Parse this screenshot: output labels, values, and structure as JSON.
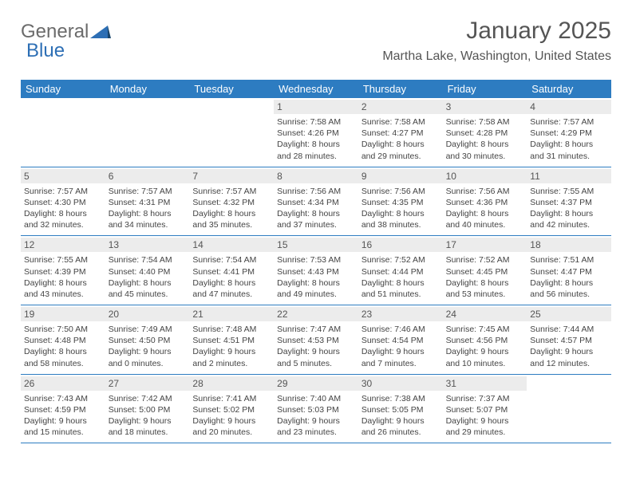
{
  "brand": {
    "part1": "General",
    "part2": "Blue"
  },
  "title": {
    "month": "January 2025",
    "location": "Martha Lake, Washington, United States"
  },
  "colors": {
    "header_bg": "#2d7cc1",
    "header_text": "#ffffff",
    "daybar_bg": "#ececec",
    "text_primary": "#555555",
    "text_body": "#444444",
    "rule": "#2d7cc1",
    "page_bg": "#ffffff",
    "brand_gray": "#6b6b6b",
    "brand_blue": "#2d6fb5"
  },
  "layout": {
    "columns": 7,
    "header_fontsize": 13,
    "daynum_fontsize": 12,
    "info_fontsize": 10.5,
    "title_fontsize": 30,
    "subtitle_fontsize": 16
  },
  "dayHeaders": [
    "Sunday",
    "Monday",
    "Tuesday",
    "Wednesday",
    "Thursday",
    "Friday",
    "Saturday"
  ],
  "weeks": [
    [
      {
        "blank": true
      },
      {
        "blank": true
      },
      {
        "blank": true
      },
      {
        "n": "1",
        "sr": "7:58 AM",
        "ss": "4:26 PM",
        "dh": 8,
        "dm": 28
      },
      {
        "n": "2",
        "sr": "7:58 AM",
        "ss": "4:27 PM",
        "dh": 8,
        "dm": 29
      },
      {
        "n": "3",
        "sr": "7:58 AM",
        "ss": "4:28 PM",
        "dh": 8,
        "dm": 30
      },
      {
        "n": "4",
        "sr": "7:57 AM",
        "ss": "4:29 PM",
        "dh": 8,
        "dm": 31
      }
    ],
    [
      {
        "n": "5",
        "sr": "7:57 AM",
        "ss": "4:30 PM",
        "dh": 8,
        "dm": 32
      },
      {
        "n": "6",
        "sr": "7:57 AM",
        "ss": "4:31 PM",
        "dh": 8,
        "dm": 34
      },
      {
        "n": "7",
        "sr": "7:57 AM",
        "ss": "4:32 PM",
        "dh": 8,
        "dm": 35
      },
      {
        "n": "8",
        "sr": "7:56 AM",
        "ss": "4:34 PM",
        "dh": 8,
        "dm": 37
      },
      {
        "n": "9",
        "sr": "7:56 AM",
        "ss": "4:35 PM",
        "dh": 8,
        "dm": 38
      },
      {
        "n": "10",
        "sr": "7:56 AM",
        "ss": "4:36 PM",
        "dh": 8,
        "dm": 40
      },
      {
        "n": "11",
        "sr": "7:55 AM",
        "ss": "4:37 PM",
        "dh": 8,
        "dm": 42
      }
    ],
    [
      {
        "n": "12",
        "sr": "7:55 AM",
        "ss": "4:39 PM",
        "dh": 8,
        "dm": 43
      },
      {
        "n": "13",
        "sr": "7:54 AM",
        "ss": "4:40 PM",
        "dh": 8,
        "dm": 45
      },
      {
        "n": "14",
        "sr": "7:54 AM",
        "ss": "4:41 PM",
        "dh": 8,
        "dm": 47
      },
      {
        "n": "15",
        "sr": "7:53 AM",
        "ss": "4:43 PM",
        "dh": 8,
        "dm": 49
      },
      {
        "n": "16",
        "sr": "7:52 AM",
        "ss": "4:44 PM",
        "dh": 8,
        "dm": 51
      },
      {
        "n": "17",
        "sr": "7:52 AM",
        "ss": "4:45 PM",
        "dh": 8,
        "dm": 53
      },
      {
        "n": "18",
        "sr": "7:51 AM",
        "ss": "4:47 PM",
        "dh": 8,
        "dm": 56
      }
    ],
    [
      {
        "n": "19",
        "sr": "7:50 AM",
        "ss": "4:48 PM",
        "dh": 8,
        "dm": 58
      },
      {
        "n": "20",
        "sr": "7:49 AM",
        "ss": "4:50 PM",
        "dh": 9,
        "dm": 0
      },
      {
        "n": "21",
        "sr": "7:48 AM",
        "ss": "4:51 PM",
        "dh": 9,
        "dm": 2
      },
      {
        "n": "22",
        "sr": "7:47 AM",
        "ss": "4:53 PM",
        "dh": 9,
        "dm": 5
      },
      {
        "n": "23",
        "sr": "7:46 AM",
        "ss": "4:54 PM",
        "dh": 9,
        "dm": 7
      },
      {
        "n": "24",
        "sr": "7:45 AM",
        "ss": "4:56 PM",
        "dh": 9,
        "dm": 10
      },
      {
        "n": "25",
        "sr": "7:44 AM",
        "ss": "4:57 PM",
        "dh": 9,
        "dm": 12
      }
    ],
    [
      {
        "n": "26",
        "sr": "7:43 AM",
        "ss": "4:59 PM",
        "dh": 9,
        "dm": 15
      },
      {
        "n": "27",
        "sr": "7:42 AM",
        "ss": "5:00 PM",
        "dh": 9,
        "dm": 18
      },
      {
        "n": "28",
        "sr": "7:41 AM",
        "ss": "5:02 PM",
        "dh": 9,
        "dm": 20
      },
      {
        "n": "29",
        "sr": "7:40 AM",
        "ss": "5:03 PM",
        "dh": 9,
        "dm": 23
      },
      {
        "n": "30",
        "sr": "7:38 AM",
        "ss": "5:05 PM",
        "dh": 9,
        "dm": 26
      },
      {
        "n": "31",
        "sr": "7:37 AM",
        "ss": "5:07 PM",
        "dh": 9,
        "dm": 29
      },
      {
        "blank": true
      }
    ]
  ]
}
